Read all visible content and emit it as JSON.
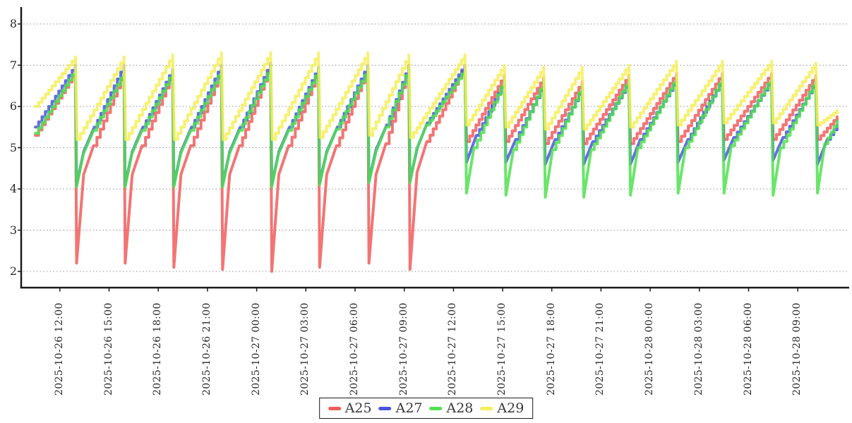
{
  "chart_data": {
    "type": "line",
    "grid": "horizontal-dotted",
    "legend_position": "bottom-center",
    "background": "#ffffff",
    "axis_color": "#1a1a1a",
    "grid_color": "#8f8f8f",
    "ylim": [
      2,
      8
    ],
    "y_ticks": [
      8,
      7,
      6,
      5,
      4,
      3,
      2
    ],
    "x_tick_hours": [
      1.5,
      4.5,
      7.5,
      10.5,
      13.5,
      16.5,
      19.5,
      22.5,
      25.5,
      28.5,
      31.5,
      34.5,
      37.5,
      40.5,
      43.5,
      46.5
    ],
    "x_ticks": [
      "2025-10-26 12:00",
      "2025-10-26 15:00",
      "2025-10-26 18:00",
      "2025-10-26 21:00",
      "2025-10-27 00:00",
      "2025-10-27 03:00",
      "2025-10-27 06:00",
      "2025-10-27 09:00",
      "2025-10-27 12:00",
      "2025-10-27 15:00",
      "2025-10-27 18:00",
      "2025-10-27 21:00",
      "2025-10-28 00:00",
      "2025-10-28 03:00",
      "2025-10-28 06:00",
      "2025-10-28 09:00"
    ],
    "time_range_hours": [
      0,
      48.9
    ],
    "series": [
      {
        "name": "A25",
        "color": "#f15c5c",
        "points": [
          [
            0,
            5.3,
            0
          ],
          [
            2.45,
            6.85,
            1
          ],
          [
            2.52,
            2.2,
            0
          ],
          [
            2.95,
            4.35,
            0
          ],
          [
            3.55,
            5.05,
            0
          ],
          [
            5.41,
            6.85,
            1
          ],
          [
            5.48,
            2.2,
            0
          ],
          [
            5.91,
            4.35,
            0
          ],
          [
            6.51,
            5.05,
            0
          ],
          [
            8.38,
            6.85,
            1
          ],
          [
            8.45,
            2.1,
            0
          ],
          [
            8.88,
            4.35,
            0
          ],
          [
            9.48,
            5.05,
            0
          ],
          [
            11.35,
            6.9,
            1
          ],
          [
            11.42,
            2.05,
            0
          ],
          [
            11.85,
            4.35,
            0
          ],
          [
            12.45,
            5.05,
            0
          ],
          [
            14.35,
            7.0,
            1
          ],
          [
            14.42,
            2.0,
            0
          ],
          [
            14.85,
            4.35,
            0
          ],
          [
            15.45,
            5.05,
            0
          ],
          [
            17.27,
            6.9,
            1
          ],
          [
            17.34,
            2.1,
            0
          ],
          [
            17.77,
            4.35,
            0
          ],
          [
            18.37,
            5.05,
            0
          ],
          [
            20.28,
            6.95,
            1
          ],
          [
            20.35,
            2.2,
            0
          ],
          [
            20.78,
            4.35,
            0
          ],
          [
            21.38,
            5.1,
            0
          ],
          [
            22.78,
            7.0,
            1
          ],
          [
            22.85,
            2.05,
            0
          ],
          [
            23.28,
            4.4,
            0
          ],
          [
            23.88,
            5.15,
            0
          ],
          [
            26.2,
            7.0,
            1
          ],
          [
            26.3,
            5.15,
            0
          ],
          [
            28.6,
            6.75,
            1
          ],
          [
            28.7,
            5.15,
            0
          ],
          [
            31.0,
            6.7,
            1
          ],
          [
            31.1,
            5.1,
            0
          ],
          [
            33.35,
            6.6,
            1
          ],
          [
            33.45,
            5.1,
            0
          ],
          [
            36.2,
            6.75,
            1
          ],
          [
            36.3,
            5.1,
            0
          ],
          [
            39.1,
            6.8,
            1
          ],
          [
            39.2,
            5.15,
            0
          ],
          [
            41.9,
            6.8,
            1
          ],
          [
            42.0,
            5.2,
            0
          ],
          [
            44.9,
            6.8,
            1
          ],
          [
            45.0,
            5.2,
            0
          ],
          [
            47.6,
            6.75,
            1
          ],
          [
            47.7,
            5.2,
            0
          ],
          [
            48.9,
            5.75,
            1
          ]
        ]
      },
      {
        "name": "A27",
        "color": "#4a54e0",
        "points": [
          [
            0,
            5.5,
            0
          ],
          [
            2.45,
            7.0,
            1
          ],
          [
            2.52,
            4.1,
            0
          ],
          [
            2.95,
            4.9,
            0
          ],
          [
            3.6,
            5.5,
            0
          ],
          [
            5.41,
            7.0,
            1
          ],
          [
            5.48,
            4.1,
            0
          ],
          [
            5.91,
            4.9,
            0
          ],
          [
            6.56,
            5.5,
            0
          ],
          [
            8.38,
            6.9,
            1
          ],
          [
            8.45,
            4.1,
            0
          ],
          [
            8.88,
            4.9,
            0
          ],
          [
            9.53,
            5.5,
            0
          ],
          [
            11.35,
            7.0,
            1
          ],
          [
            11.42,
            4.1,
            0
          ],
          [
            11.85,
            4.9,
            0
          ],
          [
            12.5,
            5.5,
            0
          ],
          [
            14.35,
            7.05,
            1
          ],
          [
            14.42,
            4.1,
            0
          ],
          [
            14.85,
            4.9,
            0
          ],
          [
            15.5,
            5.5,
            0
          ],
          [
            17.27,
            6.95,
            1
          ],
          [
            17.34,
            4.15,
            0
          ],
          [
            17.77,
            4.9,
            0
          ],
          [
            18.42,
            5.5,
            0
          ],
          [
            20.28,
            7.0,
            1
          ],
          [
            20.35,
            4.2,
            0
          ],
          [
            20.78,
            4.95,
            0
          ],
          [
            21.43,
            5.55,
            0
          ],
          [
            22.78,
            7.0,
            1
          ],
          [
            22.85,
            4.2,
            0
          ],
          [
            23.3,
            5.0,
            0
          ],
          [
            23.9,
            5.6,
            0
          ],
          [
            26.2,
            7.0,
            1
          ],
          [
            26.3,
            4.65,
            0
          ],
          [
            26.9,
            5.3,
            0
          ],
          [
            28.6,
            6.6,
            1
          ],
          [
            28.7,
            4.65,
            0
          ],
          [
            29.3,
            5.2,
            0
          ],
          [
            31.0,
            6.55,
            1
          ],
          [
            31.1,
            4.6,
            0
          ],
          [
            31.7,
            5.2,
            0
          ],
          [
            33.35,
            6.45,
            1
          ],
          [
            33.45,
            4.6,
            0
          ],
          [
            34.0,
            5.15,
            0
          ],
          [
            36.2,
            6.6,
            1
          ],
          [
            36.3,
            4.6,
            0
          ],
          [
            36.9,
            5.2,
            0
          ],
          [
            39.1,
            6.65,
            1
          ],
          [
            39.2,
            4.65,
            0
          ],
          [
            39.8,
            5.2,
            0
          ],
          [
            41.9,
            6.65,
            1
          ],
          [
            42.0,
            4.7,
            0
          ],
          [
            42.6,
            5.25,
            0
          ],
          [
            44.9,
            6.65,
            1
          ],
          [
            45.0,
            4.7,
            0
          ],
          [
            45.6,
            5.25,
            0
          ],
          [
            47.6,
            6.6,
            1
          ],
          [
            47.7,
            4.6,
            0
          ],
          [
            48.3,
            5.2,
            0
          ],
          [
            48.9,
            5.55,
            1
          ]
        ]
      },
      {
        "name": "A28",
        "color": "#50e150",
        "points": [
          [
            0,
            5.35,
            0
          ],
          [
            2.45,
            6.9,
            1
          ],
          [
            2.52,
            4.05,
            0
          ],
          [
            2.93,
            4.85,
            0
          ],
          [
            3.55,
            5.42,
            0
          ],
          [
            5.41,
            6.85,
            1
          ],
          [
            5.48,
            4.05,
            0
          ],
          [
            5.89,
            4.85,
            0
          ],
          [
            6.51,
            5.42,
            0
          ],
          [
            8.38,
            6.85,
            1
          ],
          [
            8.45,
            4.05,
            0
          ],
          [
            8.86,
            4.85,
            0
          ],
          [
            9.48,
            5.42,
            0
          ],
          [
            11.35,
            6.9,
            1
          ],
          [
            11.42,
            4.05,
            0
          ],
          [
            11.83,
            4.85,
            0
          ],
          [
            12.45,
            5.42,
            0
          ],
          [
            14.35,
            6.95,
            1
          ],
          [
            14.42,
            4.05,
            0
          ],
          [
            14.83,
            4.85,
            0
          ],
          [
            15.45,
            5.42,
            0
          ],
          [
            17.27,
            6.9,
            1
          ],
          [
            17.34,
            4.1,
            0
          ],
          [
            17.75,
            4.85,
            0
          ],
          [
            18.37,
            5.45,
            0
          ],
          [
            20.28,
            6.9,
            1
          ],
          [
            20.35,
            4.15,
            0
          ],
          [
            20.78,
            4.9,
            0
          ],
          [
            21.38,
            5.5,
            0
          ],
          [
            22.78,
            6.95,
            1
          ],
          [
            22.85,
            4.15,
            0
          ],
          [
            23.25,
            4.95,
            0
          ],
          [
            23.85,
            5.55,
            0
          ],
          [
            26.2,
            6.9,
            1
          ],
          [
            26.3,
            3.9,
            0
          ],
          [
            26.75,
            5.0,
            0
          ],
          [
            28.6,
            6.65,
            1
          ],
          [
            28.7,
            3.85,
            0
          ],
          [
            29.15,
            4.95,
            0
          ],
          [
            31.0,
            6.6,
            1
          ],
          [
            31.1,
            3.8,
            0
          ],
          [
            31.55,
            4.95,
            0
          ],
          [
            33.35,
            6.5,
            1
          ],
          [
            33.45,
            3.8,
            0
          ],
          [
            33.9,
            4.95,
            0
          ],
          [
            36.2,
            6.65,
            1
          ],
          [
            36.3,
            3.85,
            0
          ],
          [
            36.75,
            5.0,
            0
          ],
          [
            39.1,
            6.7,
            1
          ],
          [
            39.2,
            3.9,
            0
          ],
          [
            39.65,
            5.0,
            0
          ],
          [
            41.9,
            6.7,
            1
          ],
          [
            42.0,
            3.9,
            0
          ],
          [
            42.45,
            5.05,
            0
          ],
          [
            44.9,
            6.7,
            1
          ],
          [
            45.0,
            3.85,
            0
          ],
          [
            45.45,
            5.0,
            0
          ],
          [
            47.6,
            6.65,
            1
          ],
          [
            47.7,
            3.9,
            0
          ],
          [
            48.15,
            5.1,
            0
          ],
          [
            48.9,
            5.65,
            1
          ]
        ]
      },
      {
        "name": "A29",
        "color": "#f4ef5a",
        "points": [
          [
            0,
            6.0,
            0
          ],
          [
            2.45,
            7.2,
            1
          ],
          [
            2.55,
            5.2,
            0
          ],
          [
            5.41,
            7.2,
            1
          ],
          [
            5.51,
            5.2,
            0
          ],
          [
            8.38,
            7.25,
            1
          ],
          [
            8.48,
            5.2,
            0
          ],
          [
            11.35,
            7.3,
            1
          ],
          [
            11.45,
            5.2,
            0
          ],
          [
            14.35,
            7.3,
            1
          ],
          [
            14.45,
            5.2,
            0
          ],
          [
            17.27,
            7.3,
            1
          ],
          [
            17.37,
            5.25,
            0
          ],
          [
            20.28,
            7.3,
            1
          ],
          [
            20.38,
            5.3,
            0
          ],
          [
            22.78,
            7.25,
            1
          ],
          [
            22.88,
            5.25,
            0
          ],
          [
            26.2,
            7.25,
            1
          ],
          [
            26.3,
            5.55,
            0
          ],
          [
            28.6,
            7.0,
            1
          ],
          [
            28.7,
            5.5,
            0
          ],
          [
            31.0,
            6.95,
            1
          ],
          [
            31.1,
            5.45,
            0
          ],
          [
            33.35,
            6.95,
            1
          ],
          [
            33.45,
            5.45,
            0
          ],
          [
            36.2,
            7.0,
            1
          ],
          [
            36.3,
            5.5,
            0
          ],
          [
            39.1,
            7.1,
            1
          ],
          [
            39.2,
            5.55,
            0
          ],
          [
            41.9,
            7.1,
            1
          ],
          [
            42.0,
            5.6,
            0
          ],
          [
            44.9,
            7.1,
            1
          ],
          [
            45.0,
            5.6,
            0
          ],
          [
            47.6,
            7.05,
            1
          ],
          [
            47.7,
            5.55,
            0
          ],
          [
            48.9,
            5.9,
            1
          ]
        ]
      }
    ]
  },
  "legend": {
    "items": [
      {
        "label": "A25",
        "color": "#f15c5c"
      },
      {
        "label": "A27",
        "color": "#4a54e0"
      },
      {
        "label": "A28",
        "color": "#50e150"
      },
      {
        "label": "A29",
        "color": "#f4ef5a"
      }
    ]
  }
}
